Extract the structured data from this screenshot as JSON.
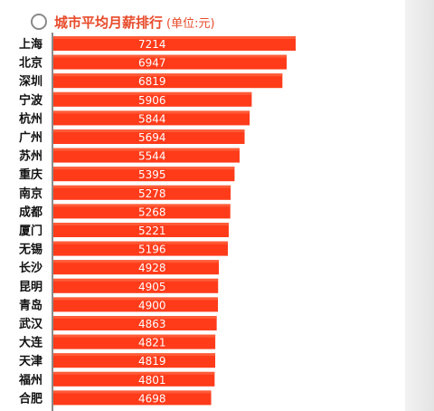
{
  "chart_data": {
    "type": "bar",
    "orientation": "horizontal",
    "title": "城市平均月薪排行",
    "unit": "(单位:元)",
    "categories": [
      "上海",
      "北京",
      "深圳",
      "宁波",
      "杭州",
      "广州",
      "苏州",
      "重庆",
      "南京",
      "成都",
      "厦门",
      "无锡",
      "长沙",
      "昆明",
      "青岛",
      "武汉",
      "大连",
      "天津",
      "福州",
      "合肥"
    ],
    "values": [
      7214,
      6947,
      6819,
      5906,
      5844,
      5694,
      5544,
      5395,
      5278,
      5268,
      5221,
      5196,
      4928,
      4905,
      4900,
      4863,
      4821,
      4819,
      4801,
      4698
    ],
    "xlim": [
      0,
      7214
    ],
    "grid": false,
    "legend": "none",
    "colors": {
      "bar": "#ff3b1a",
      "bar_highlight": "#ff6a45",
      "value_text": "#ffffff",
      "category_text": "#111111",
      "title": "#e84a2a",
      "axis": "#8a8a8a"
    }
  }
}
